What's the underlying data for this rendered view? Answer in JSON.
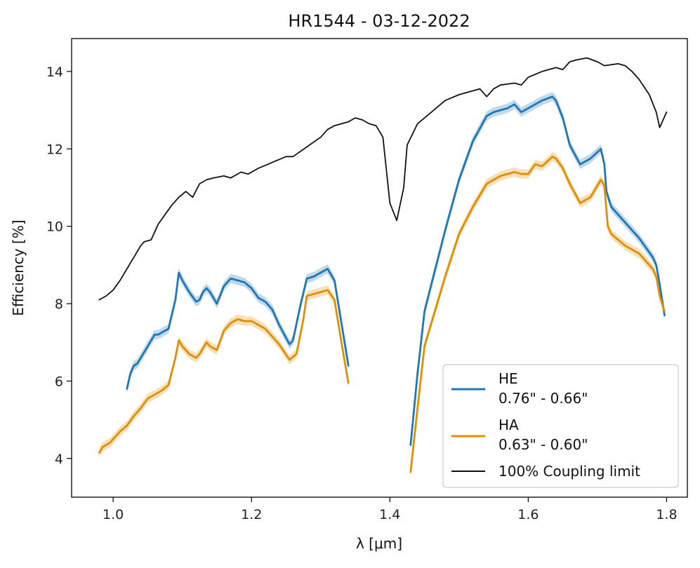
{
  "chart_data": {
    "type": "line",
    "title": "HR1544 - 03-12-2022",
    "xlabel": "λ [μm]",
    "ylabel": "Efficiency [%]",
    "xlim": [
      0.94,
      1.83
    ],
    "ylim": [
      3.0,
      14.85
    ],
    "xticks": [
      1.0,
      1.2,
      1.4,
      1.6,
      1.8
    ],
    "xtick_labels": [
      "1.0",
      "1.2",
      "1.4",
      "1.6",
      "1.8"
    ],
    "yticks": [
      4,
      6,
      8,
      10,
      12,
      14
    ],
    "ytick_labels": [
      "4",
      "6",
      "8",
      "10",
      "12",
      "14"
    ],
    "grid": false,
    "legend_position": "bottom-right",
    "series": [
      {
        "name": "HE\n0.76\" - 0.66\"",
        "color": "#1f77b4",
        "band": 0.12,
        "segments": [
          [
            [
              1.02,
              5.8
            ],
            [
              1.025,
              6.2
            ],
            [
              1.03,
              6.4
            ],
            [
              1.035,
              6.45
            ],
            [
              1.04,
              6.6
            ],
            [
              1.05,
              6.9
            ],
            [
              1.06,
              7.2
            ],
            [
              1.065,
              7.2
            ],
            [
              1.07,
              7.25
            ],
            [
              1.08,
              7.35
            ],
            [
              1.09,
              8.1
            ],
            [
              1.095,
              8.8
            ],
            [
              1.1,
              8.6
            ],
            [
              1.11,
              8.3
            ],
            [
              1.12,
              8.05
            ],
            [
              1.125,
              8.1
            ],
            [
              1.13,
              8.3
            ],
            [
              1.135,
              8.4
            ],
            [
              1.14,
              8.3
            ],
            [
              1.15,
              8.0
            ],
            [
              1.16,
              8.45
            ],
            [
              1.17,
              8.65
            ],
            [
              1.18,
              8.6
            ],
            [
              1.19,
              8.55
            ],
            [
              1.2,
              8.4
            ],
            [
              1.21,
              8.15
            ],
            [
              1.22,
              8.05
            ],
            [
              1.23,
              7.85
            ],
            [
              1.24,
              7.45
            ],
            [
              1.255,
              6.95
            ],
            [
              1.26,
              7.05
            ],
            [
              1.27,
              7.9
            ],
            [
              1.28,
              8.65
            ],
            [
              1.29,
              8.7
            ],
            [
              1.3,
              8.8
            ],
            [
              1.31,
              8.9
            ],
            [
              1.32,
              8.6
            ],
            [
              1.33,
              7.5
            ],
            [
              1.34,
              6.4
            ]
          ],
          [
            [
              1.43,
              4.35
            ],
            [
              1.44,
              6.2
            ],
            [
              1.45,
              7.8
            ],
            [
              1.46,
              8.5
            ],
            [
              1.48,
              9.9
            ],
            [
              1.5,
              11.2
            ],
            [
              1.52,
              12.2
            ],
            [
              1.54,
              12.85
            ],
            [
              1.55,
              12.95
            ],
            [
              1.57,
              13.05
            ],
            [
              1.58,
              13.15
            ],
            [
              1.59,
              12.95
            ],
            [
              1.6,
              13.05
            ],
            [
              1.62,
              13.25
            ],
            [
              1.635,
              13.35
            ],
            [
              1.64,
              13.25
            ],
            [
              1.65,
              12.8
            ],
            [
              1.66,
              12.1
            ],
            [
              1.675,
              11.6
            ],
            [
              1.69,
              11.75
            ],
            [
              1.705,
              12.0
            ],
            [
              1.71,
              11.6
            ],
            [
              1.713,
              10.9
            ],
            [
              1.72,
              10.5
            ],
            [
              1.74,
              10.1
            ],
            [
              1.76,
              9.7
            ],
            [
              1.78,
              9.2
            ],
            [
              1.785,
              9.0
            ],
            [
              1.79,
              8.5
            ],
            [
              1.797,
              7.7
            ]
          ]
        ]
      },
      {
        "name": "HA\n0.63\" - 0.60\"",
        "color": "#de8f05",
        "band": 0.12,
        "segments": [
          [
            [
              0.98,
              4.15
            ],
            [
              0.985,
              4.3
            ],
            [
              0.995,
              4.4
            ],
            [
              1.0,
              4.5
            ],
            [
              1.01,
              4.7
            ],
            [
              1.02,
              4.85
            ],
            [
              1.03,
              5.1
            ],
            [
              1.04,
              5.3
            ],
            [
              1.05,
              5.55
            ],
            [
              1.06,
              5.65
            ],
            [
              1.07,
              5.75
            ],
            [
              1.08,
              5.9
            ],
            [
              1.09,
              6.6
            ],
            [
              1.095,
              7.05
            ],
            [
              1.1,
              6.9
            ],
            [
              1.11,
              6.7
            ],
            [
              1.12,
              6.6
            ],
            [
              1.125,
              6.7
            ],
            [
              1.13,
              6.85
            ],
            [
              1.135,
              7.0
            ],
            [
              1.14,
              6.9
            ],
            [
              1.15,
              6.8
            ],
            [
              1.16,
              7.3
            ],
            [
              1.17,
              7.5
            ],
            [
              1.18,
              7.6
            ],
            [
              1.19,
              7.55
            ],
            [
              1.2,
              7.55
            ],
            [
              1.21,
              7.45
            ],
            [
              1.22,
              7.35
            ],
            [
              1.24,
              6.95
            ],
            [
              1.255,
              6.55
            ],
            [
              1.265,
              6.7
            ],
            [
              1.275,
              7.6
            ],
            [
              1.28,
              8.2
            ],
            [
              1.29,
              8.25
            ],
            [
              1.3,
              8.3
            ],
            [
              1.31,
              8.35
            ],
            [
              1.32,
              8.1
            ],
            [
              1.33,
              7.0
            ],
            [
              1.34,
              5.95
            ]
          ],
          [
            [
              1.43,
              3.65
            ],
            [
              1.44,
              5.3
            ],
            [
              1.45,
              6.9
            ],
            [
              1.46,
              7.5
            ],
            [
              1.48,
              8.7
            ],
            [
              1.5,
              9.8
            ],
            [
              1.52,
              10.5
            ],
            [
              1.54,
              11.1
            ],
            [
              1.56,
              11.3
            ],
            [
              1.58,
              11.4
            ],
            [
              1.59,
              11.35
            ],
            [
              1.6,
              11.35
            ],
            [
              1.61,
              11.6
            ],
            [
              1.62,
              11.55
            ],
            [
              1.635,
              11.8
            ],
            [
              1.64,
              11.75
            ],
            [
              1.65,
              11.5
            ],
            [
              1.66,
              11.1
            ],
            [
              1.675,
              10.6
            ],
            [
              1.69,
              10.75
            ],
            [
              1.705,
              11.2
            ],
            [
              1.71,
              11.05
            ],
            [
              1.715,
              10.0
            ],
            [
              1.72,
              9.8
            ],
            [
              1.74,
              9.5
            ],
            [
              1.76,
              9.3
            ],
            [
              1.78,
              8.9
            ],
            [
              1.785,
              8.7
            ],
            [
              1.79,
              8.2
            ],
            [
              1.797,
              7.8
            ]
          ]
        ]
      },
      {
        "name": "100% Coupling limit",
        "color": "#111111",
        "band": 0,
        "segments": [
          [
            [
              0.98,
              8.1
            ],
            [
              0.99,
              8.2
            ],
            [
              1.0,
              8.35
            ],
            [
              1.01,
              8.6
            ],
            [
              1.02,
              8.9
            ],
            [
              1.03,
              9.2
            ],
            [
              1.04,
              9.5
            ],
            [
              1.045,
              9.6
            ],
            [
              1.055,
              9.65
            ],
            [
              1.065,
              10.05
            ],
            [
              1.075,
              10.3
            ],
            [
              1.085,
              10.55
            ],
            [
              1.095,
              10.75
            ],
            [
              1.105,
              10.9
            ],
            [
              1.115,
              10.75
            ],
            [
              1.125,
              11.1
            ],
            [
              1.135,
              11.2
            ],
            [
              1.145,
              11.25
            ],
            [
              1.16,
              11.3
            ],
            [
              1.17,
              11.25
            ],
            [
              1.185,
              11.4
            ],
            [
              1.195,
              11.35
            ],
            [
              1.21,
              11.5
            ],
            [
              1.23,
              11.65
            ],
            [
              1.25,
              11.8
            ],
            [
              1.26,
              11.8
            ],
            [
              1.28,
              12.05
            ],
            [
              1.3,
              12.3
            ],
            [
              1.31,
              12.5
            ],
            [
              1.32,
              12.6
            ],
            [
              1.34,
              12.7
            ],
            [
              1.35,
              12.8
            ],
            [
              1.36,
              12.75
            ],
            [
              1.37,
              12.65
            ],
            [
              1.38,
              12.6
            ],
            [
              1.39,
              12.3
            ],
            [
              1.4,
              10.6
            ],
            [
              1.41,
              10.15
            ],
            [
              1.42,
              11.0
            ],
            [
              1.425,
              12.1
            ],
            [
              1.44,
              12.65
            ],
            [
              1.46,
              12.95
            ],
            [
              1.48,
              13.25
            ],
            [
              1.5,
              13.4
            ],
            [
              1.52,
              13.5
            ],
            [
              1.53,
              13.55
            ],
            [
              1.54,
              13.35
            ],
            [
              1.55,
              13.55
            ],
            [
              1.56,
              13.65
            ],
            [
              1.58,
              13.7
            ],
            [
              1.59,
              13.65
            ],
            [
              1.6,
              13.85
            ],
            [
              1.62,
              14.0
            ],
            [
              1.64,
              14.1
            ],
            [
              1.65,
              14.05
            ],
            [
              1.66,
              14.25
            ],
            [
              1.67,
              14.3
            ],
            [
              1.685,
              14.35
            ],
            [
              1.7,
              14.25
            ],
            [
              1.71,
              14.15
            ],
            [
              1.73,
              14.2
            ],
            [
              1.74,
              14.15
            ],
            [
              1.75,
              14.0
            ],
            [
              1.76,
              13.8
            ],
            [
              1.775,
              13.4
            ],
            [
              1.785,
              12.95
            ],
            [
              1.79,
              12.55
            ],
            [
              1.8,
              12.95
            ]
          ]
        ]
      }
    ],
    "legend": [
      {
        "line1": "HE",
        "line2": "0.76\" - 0.66\"",
        "color": "#1f77b4"
      },
      {
        "line1": "HA",
        "line2": "0.63\" - 0.60\"",
        "color": "#de8f05"
      },
      {
        "line1": "100% Coupling limit",
        "line2": "",
        "color": "#111111"
      }
    ]
  }
}
